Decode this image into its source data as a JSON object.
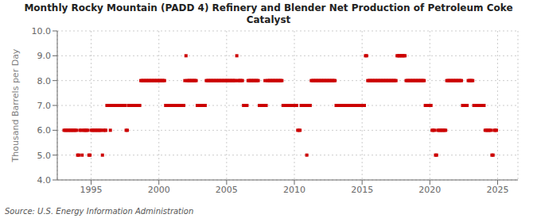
{
  "chart_data": {
    "type": "scatter",
    "title": "Monthly Rocky Mountain (PADD 4) Refinery and Blender Net Production of Petroleum Coke\nCatalyst",
    "ylabel": "Thousand Barrels per Day",
    "annotations": [
      "Source: U.S. Energy Information Administration"
    ],
    "xlim": [
      1992.5,
      2026.5
    ],
    "xticks": [
      1995,
      2000,
      2005,
      2010,
      2015,
      2020,
      2025
    ],
    "ylim": [
      4.0,
      10.0
    ],
    "yticks": [
      {
        "value": 4,
        "label": "4.0"
      },
      {
        "value": 5,
        "label": "5.0"
      },
      {
        "value": 6,
        "label": "6.0"
      },
      {
        "value": 7,
        "label": "7.0"
      },
      {
        "value": 8,
        "label": "8.0"
      },
      {
        "value": 9,
        "label": "9.0"
      },
      {
        "value": 10,
        "label": "10.0"
      }
    ],
    "color": "#cc0000",
    "marker": "square",
    "grid": true,
    "x": [
      1993.0,
      1993.083,
      1993.167,
      1993.25,
      1993.333,
      1993.417,
      1993.5,
      1993.583,
      1993.667,
      1993.75,
      1993.833,
      1993.917,
      1994.0,
      1994.083,
      1994.167,
      1994.25,
      1994.333,
      1994.417,
      1994.5,
      1994.583,
      1994.667,
      1994.75,
      1994.833,
      1994.917,
      1995.0,
      1995.083,
      1995.167,
      1995.25,
      1995.333,
      1995.417,
      1995.5,
      1995.583,
      1995.667,
      1995.75,
      1995.833,
      1995.917,
      1996.0,
      1996.083,
      1996.167,
      1996.25,
      1996.333,
      1996.417,
      1996.5,
      1996.583,
      1996.667,
      1996.75,
      1996.833,
      1996.917,
      1997.0,
      1997.083,
      1997.167,
      1997.25,
      1997.333,
      1997.417,
      1997.5,
      1997.583,
      1997.667,
      1997.75,
      1997.833,
      1997.917,
      1998.0,
      1998.083,
      1998.167,
      1998.25,
      1998.333,
      1998.417,
      1998.5,
      1998.583,
      1998.667,
      1998.75,
      1998.833,
      1998.917,
      1999.0,
      1999.083,
      1999.167,
      1999.25,
      1999.333,
      1999.417,
      1999.5,
      1999.583,
      1999.667,
      1999.75,
      1999.833,
      1999.917,
      2000.0,
      2000.083,
      2000.167,
      2000.25,
      2000.333,
      2000.417,
      2000.5,
      2000.583,
      2000.667,
      2000.75,
      2000.833,
      2000.917,
      2001.0,
      2001.083,
      2001.167,
      2001.25,
      2001.333,
      2001.417,
      2001.5,
      2001.583,
      2001.667,
      2001.75,
      2001.833,
      2001.917,
      2002.0,
      2002.083,
      2002.167,
      2002.25,
      2002.333,
      2002.417,
      2002.5,
      2002.583,
      2002.667,
      2002.75,
      2002.833,
      2002.917,
      2003.0,
      2003.083,
      2003.167,
      2003.25,
      2003.333,
      2003.417,
      2003.5,
      2003.583,
      2003.667,
      2003.75,
      2003.833,
      2003.917,
      2004.0,
      2004.083,
      2004.167,
      2004.25,
      2004.333,
      2004.417,
      2004.5,
      2004.583,
      2004.667,
      2004.75,
      2004.833,
      2004.917,
      2005.0,
      2005.083,
      2005.167,
      2005.25,
      2005.333,
      2005.417,
      2005.5,
      2005.583,
      2005.667,
      2005.75,
      2005.833,
      2005.917,
      2006.0,
      2006.083,
      2006.167,
      2006.25,
      2006.333,
      2006.417,
      2006.5,
      2006.583,
      2006.667,
      2006.75,
      2006.833,
      2006.917,
      2007.0,
      2007.083,
      2007.167,
      2007.25,
      2007.333,
      2007.417,
      2007.5,
      2007.583,
      2007.667,
      2007.75,
      2007.833,
      2007.917,
      2008.0,
      2008.083,
      2008.167,
      2008.25,
      2008.333,
      2008.417,
      2008.5,
      2008.583,
      2008.667,
      2008.75,
      2008.833,
      2008.917,
      2009.0,
      2009.083,
      2009.167,
      2009.25,
      2009.333,
      2009.417,
      2009.5,
      2009.583,
      2009.667,
      2009.75,
      2009.833,
      2009.917,
      2010.0,
      2010.083,
      2010.167,
      2010.25,
      2010.333,
      2010.417,
      2010.5,
      2010.583,
      2010.667,
      2010.75,
      2010.833,
      2010.917,
      2011.0,
      2011.083,
      2011.167,
      2011.25,
      2011.333,
      2011.417,
      2011.5,
      2011.583,
      2011.667,
      2011.75,
      2011.833,
      2011.917,
      2012.0,
      2012.083,
      2012.167,
      2012.25,
      2012.333,
      2012.417,
      2012.5,
      2012.583,
      2012.667,
      2012.75,
      2012.833,
      2012.917,
      2013.0,
      2013.083,
      2013.167,
      2013.25,
      2013.333,
      2013.417,
      2013.5,
      2013.583,
      2013.667,
      2013.75,
      2013.833,
      2013.917,
      2014.0,
      2014.083,
      2014.167,
      2014.25,
      2014.333,
      2014.417,
      2014.5,
      2014.583,
      2014.667,
      2014.75,
      2014.833,
      2014.917,
      2015.0,
      2015.083,
      2015.167,
      2015.25,
      2015.333,
      2015.417,
      2015.5,
      2015.583,
      2015.667,
      2015.75,
      2015.833,
      2015.917,
      2016.0,
      2016.083,
      2016.167,
      2016.25,
      2016.333,
      2016.417,
      2016.5,
      2016.583,
      2016.667,
      2016.75,
      2016.833,
      2016.917,
      2017.0,
      2017.083,
      2017.167,
      2017.25,
      2017.333,
      2017.417,
      2017.5,
      2017.583,
      2017.667,
      2017.75,
      2017.833,
      2017.917,
      2018.0,
      2018.083,
      2018.167,
      2018.25,
      2018.333,
      2018.417,
      2018.5,
      2018.583,
      2018.667,
      2018.75,
      2018.833,
      2018.917,
      2019.0,
      2019.083,
      2019.167,
      2019.25,
      2019.333,
      2019.417,
      2019.5,
      2019.583,
      2019.667,
      2019.75,
      2019.833,
      2019.917,
      2020.0,
      2020.083,
      2020.167,
      2020.25,
      2020.333,
      2020.417,
      2020.5,
      2020.583,
      2020.667,
      2020.75,
      2020.833,
      2020.917,
      2021.0,
      2021.083,
      2021.167,
      2021.25,
      2021.333,
      2021.417,
      2021.5,
      2021.583,
      2021.667,
      2021.75,
      2021.833,
      2021.917,
      2022.0,
      2022.083,
      2022.167,
      2022.25,
      2022.333,
      2022.417,
      2022.5,
      2022.583,
      2022.667,
      2022.75,
      2022.833,
      2022.917,
      2023.0,
      2023.083,
      2023.167,
      2023.25,
      2023.333,
      2023.417,
      2023.5,
      2023.583,
      2023.667,
      2023.75,
      2023.833,
      2023.917,
      2024.0,
      2024.083,
      2024.167,
      2024.25,
      2024.333,
      2024.417,
      2024.5,
      2024.583,
      2024.667,
      2024.75,
      2024.833,
      2024.917
    ],
    "values": [
      6,
      6,
      6,
      6,
      6,
      6,
      6,
      6,
      6,
      6,
      6,
      6,
      5,
      5,
      6,
      6,
      5,
      6,
      6,
      6,
      6,
      6,
      5,
      5,
      6,
      6,
      6,
      6,
      6,
      6,
      6,
      6,
      6,
      6,
      5,
      6,
      6,
      6,
      7,
      7,
      7,
      6,
      7,
      7,
      7,
      7,
      7,
      7,
      7,
      7,
      7,
      7,
      7,
      7,
      7,
      6,
      6,
      7,
      7,
      7,
      7,
      7,
      7,
      7,
      7,
      7,
      7,
      7,
      8,
      8,
      8,
      8,
      8,
      8,
      8,
      8,
      8,
      8,
      8,
      8,
      8,
      8,
      8,
      8,
      8,
      8,
      8,
      8,
      8,
      8,
      7,
      7,
      7,
      7,
      7,
      7,
      7,
      7,
      7,
      7,
      7,
      7,
      7,
      7,
      7,
      7,
      7,
      8,
      9,
      8,
      8,
      8,
      8,
      8,
      8,
      8,
      8,
      8,
      7,
      7,
      7,
      7,
      7,
      7,
      7,
      7,
      8,
      8,
      8,
      8,
      8,
      8,
      8,
      8,
      8,
      8,
      8,
      8,
      8,
      8,
      8,
      8,
      8,
      8,
      8,
      8,
      8,
      8,
      8,
      8,
      8,
      8,
      8,
      9,
      8,
      8,
      8,
      8,
      8,
      7,
      7,
      7,
      7,
      8,
      8,
      8,
      8,
      8,
      8,
      8,
      8,
      8,
      8,
      7,
      7,
      7,
      7,
      7,
      8,
      7,
      8,
      8,
      8,
      8,
      8,
      8,
      8,
      8,
      8,
      8,
      8,
      8,
      8,
      8,
      7,
      7,
      7,
      7,
      7,
      7,
      7,
      7,
      7,
      7,
      7,
      7,
      7,
      6,
      6,
      6,
      7,
      7,
      7,
      7,
      7,
      5,
      7,
      7,
      7,
      8,
      8,
      8,
      8,
      8,
      8,
      8,
      8,
      8,
      8,
      8,
      8,
      8,
      8,
      8,
      8,
      8,
      8,
      8,
      8,
      8,
      8,
      7,
      7,
      7,
      7,
      7,
      7,
      7,
      7,
      7,
      7,
      7,
      7,
      7,
      7,
      7,
      7,
      7,
      7,
      7,
      7,
      7,
      7,
      7,
      7,
      7,
      7,
      9,
      9,
      8,
      8,
      8,
      8,
      8,
      8,
      8,
      8,
      8,
      8,
      8,
      8,
      8,
      8,
      8,
      8,
      8,
      8,
      8,
      8,
      8,
      8,
      8,
      8,
      8,
      8,
      9,
      9,
      9,
      9,
      9,
      9,
      9,
      9,
      8,
      8,
      8,
      8,
      8,
      8,
      8,
      8,
      8,
      8,
      8,
      8,
      8,
      8,
      8,
      8,
      8,
      7,
      7,
      7,
      7,
      7,
      7,
      6,
      6,
      6,
      5,
      5,
      6,
      6,
      6,
      6,
      6,
      6,
      6,
      6,
      8,
      8,
      8,
      8,
      8,
      8,
      8,
      8,
      8,
      8,
      8,
      8,
      8,
      8,
      7,
      7,
      7,
      7,
      7,
      8,
      8,
      8,
      8,
      8,
      7,
      7,
      7,
      7,
      7,
      7,
      7,
      7,
      7,
      7,
      6,
      6,
      6,
      6,
      6,
      6,
      5,
      5,
      6,
      6,
      6
    ]
  }
}
